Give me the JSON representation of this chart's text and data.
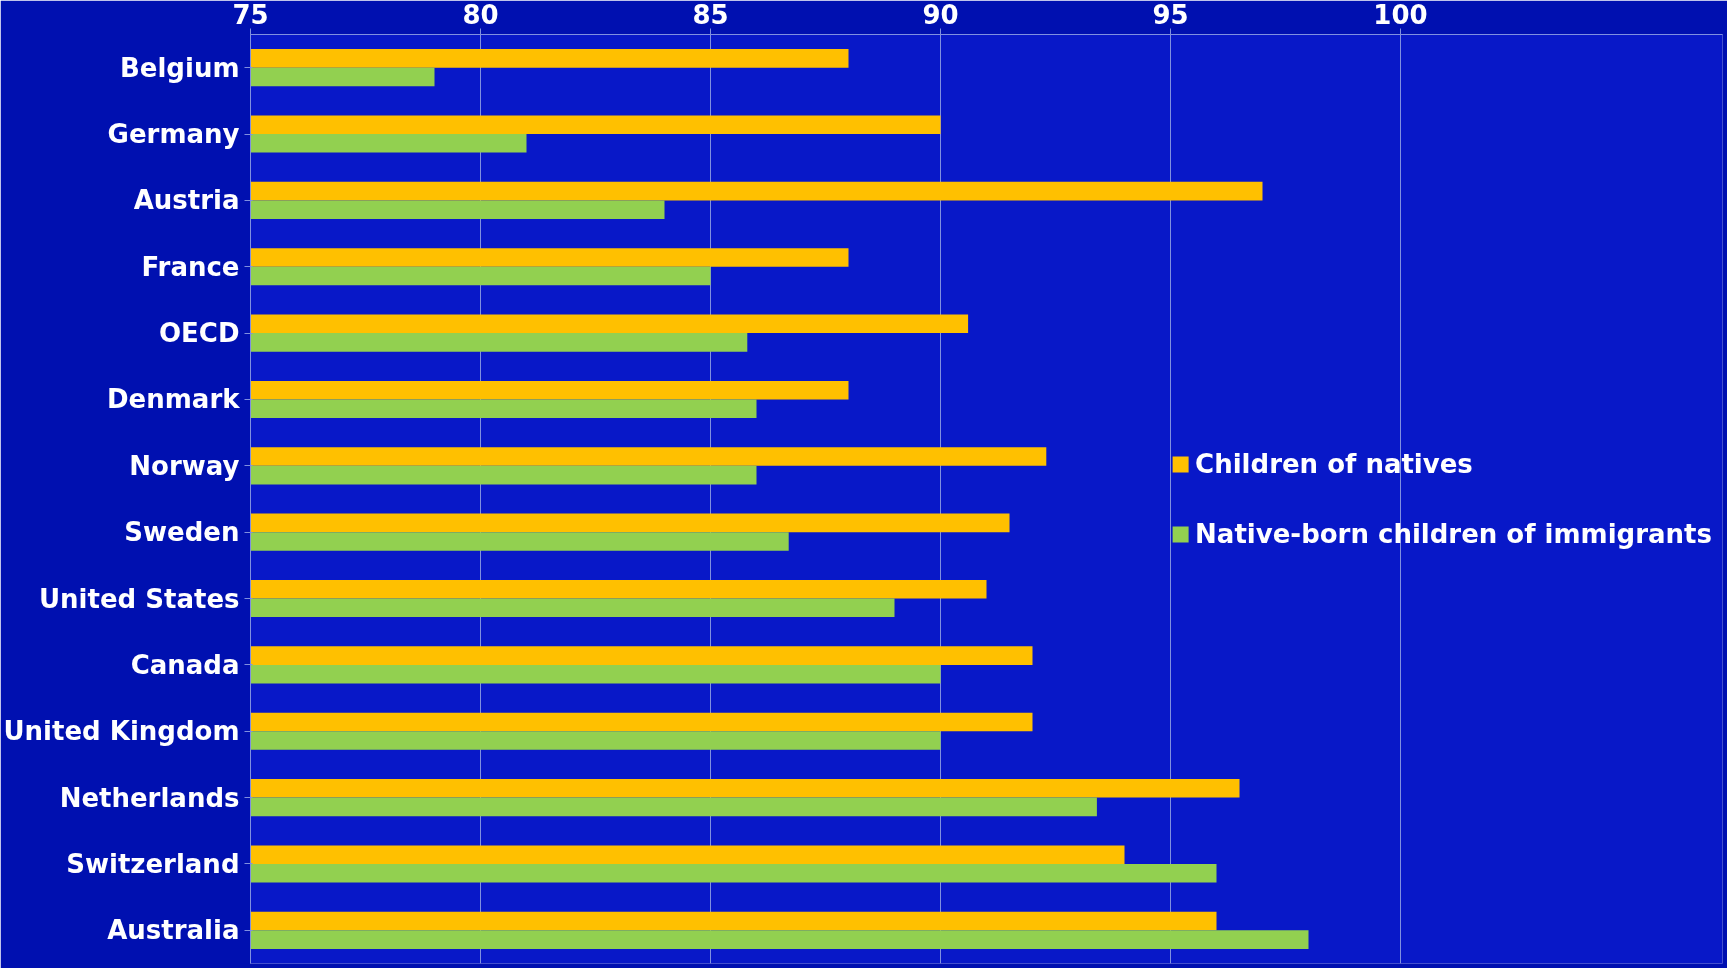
{
  "chart_data": {
    "type": "bar",
    "orientation": "horizontal",
    "categories": [
      "Belgium",
      "Germany",
      "Austria",
      "France",
      "OECD",
      "Denmark",
      "Norway",
      "Sweden",
      "United States",
      "Canada",
      "United Kingdom",
      "Netherlands",
      "Switzerland",
      "Australia"
    ],
    "series": [
      {
        "name": "Children of natives",
        "color": "#ffc000",
        "values": [
          88,
          90,
          97,
          88,
          90.6,
          88,
          92.3,
          91.5,
          91,
          92,
          92,
          96.5,
          94,
          96
        ]
      },
      {
        "name": "Native-born children of immigrants",
        "color": "#92d050",
        "values": [
          79,
          81,
          84,
          85,
          85.8,
          86,
          86,
          86.7,
          89,
          90,
          90,
          93.4,
          96,
          98
        ]
      }
    ],
    "xlim": [
      75,
      107
    ],
    "xticks": [
      75,
      80,
      85,
      90,
      95,
      100
    ],
    "grid": "x",
    "legend": "right"
  }
}
